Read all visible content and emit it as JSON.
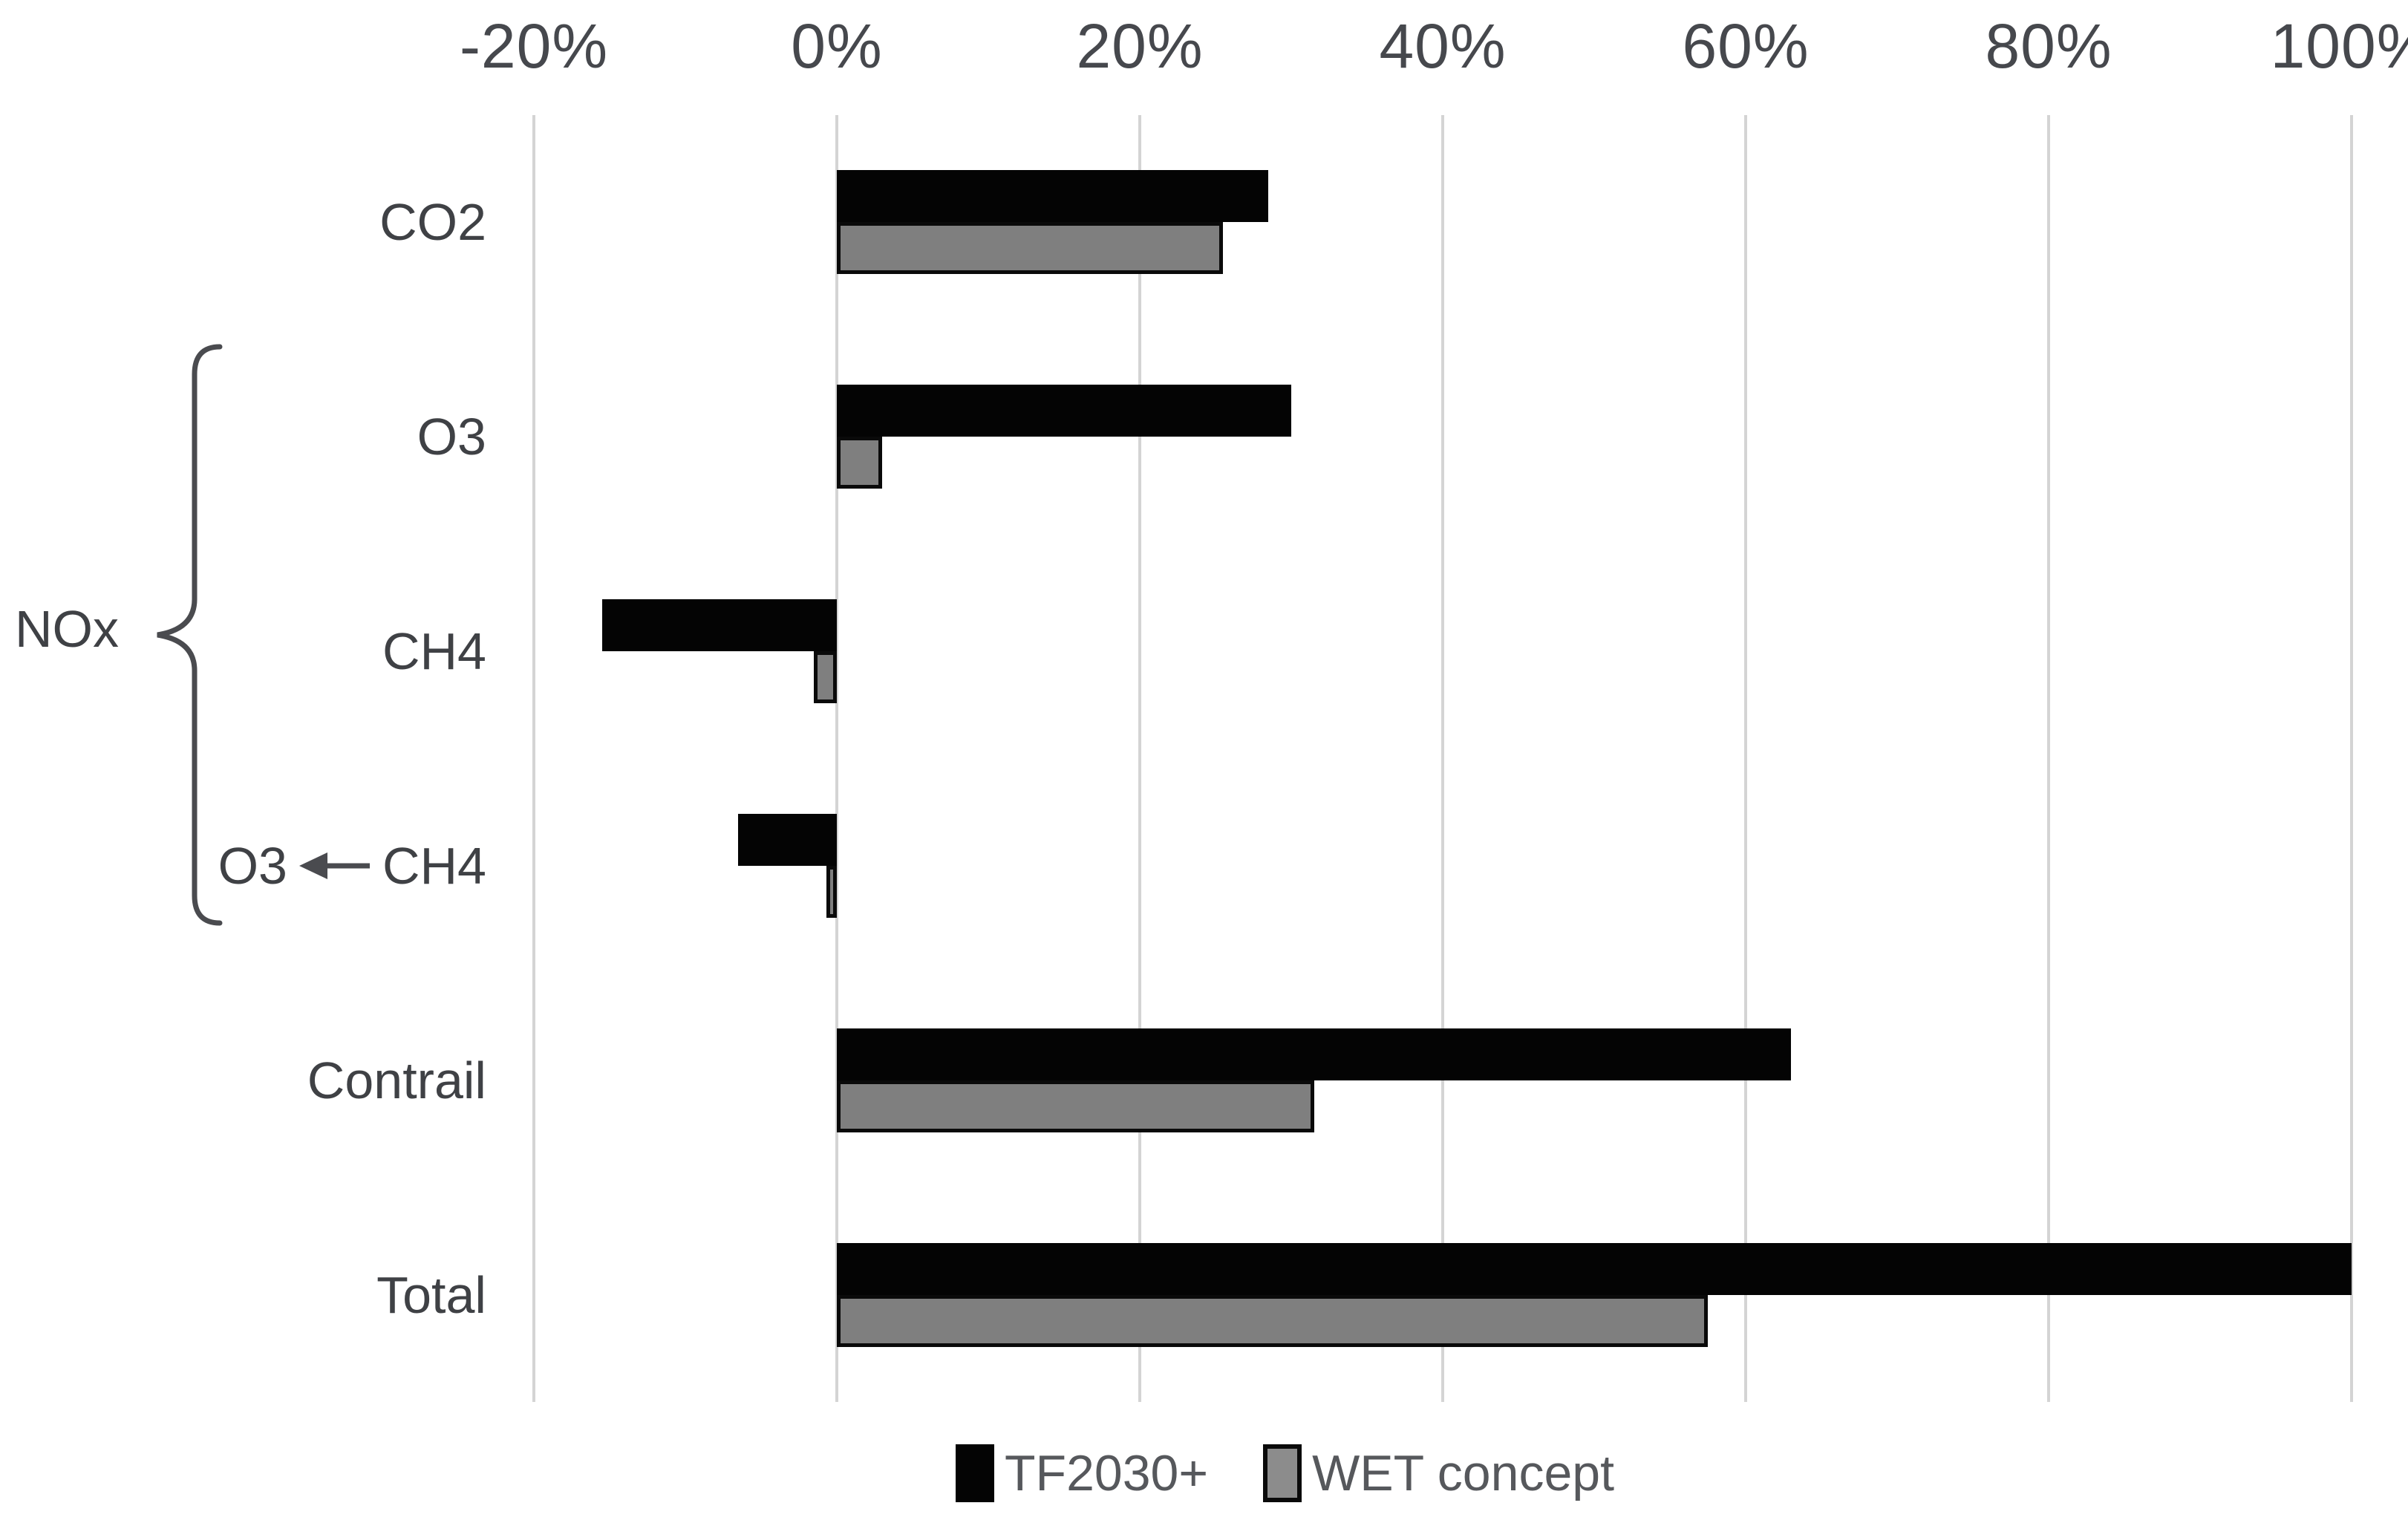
{
  "chart_data": {
    "type": "bar",
    "orientation": "horizontal",
    "title": "",
    "categories": [
      "CO2",
      "O3",
      "CH4",
      "O3 ← CH4",
      "Contrail",
      "Total"
    ],
    "category_labels": [
      {
        "text": "CO2"
      },
      {
        "text": "O3"
      },
      {
        "text": "CH4"
      },
      {
        "pre": "O3",
        "icon": "left-arrow-icon",
        "post": "CH4"
      },
      {
        "text": "Contrail"
      },
      {
        "text": "Total"
      }
    ],
    "group_label": {
      "text": "NOx",
      "applies_to": [
        "O3",
        "CH4",
        "O3 ← CH4"
      ]
    },
    "series": [
      {
        "name": "TF2030+",
        "color": "#000000",
        "values": [
          28.5,
          30,
          -15.5,
          -6.5,
          63,
          100
        ]
      },
      {
        "name": "WET concept",
        "color": "#7f7f7f",
        "border_color": "#000000",
        "values": [
          25.5,
          3,
          -1.5,
          -0.7,
          31.5,
          57.5
        ]
      }
    ],
    "x_axis": {
      "position": "top",
      "unit": "%",
      "min": -20,
      "max": 100,
      "ticks": [
        -20,
        0,
        20,
        40,
        60,
        80,
        100
      ],
      "tick_labels": [
        "-20%",
        "0%",
        "20%",
        "40%",
        "60%",
        "80%",
        "100%"
      ]
    },
    "grid": true,
    "legend": {
      "position": "bottom",
      "entries": [
        "TF2030+",
        "WET concept"
      ]
    }
  },
  "colors": {
    "background": "#ffffff",
    "gridline": "#d4d4d4",
    "bar_black": "#000000",
    "bar_gray": "#7f7f7f",
    "bar_gray_border": "#000000",
    "text": "#3f4145",
    "axis_text": "#46484d",
    "legend_text": "#56585c"
  }
}
